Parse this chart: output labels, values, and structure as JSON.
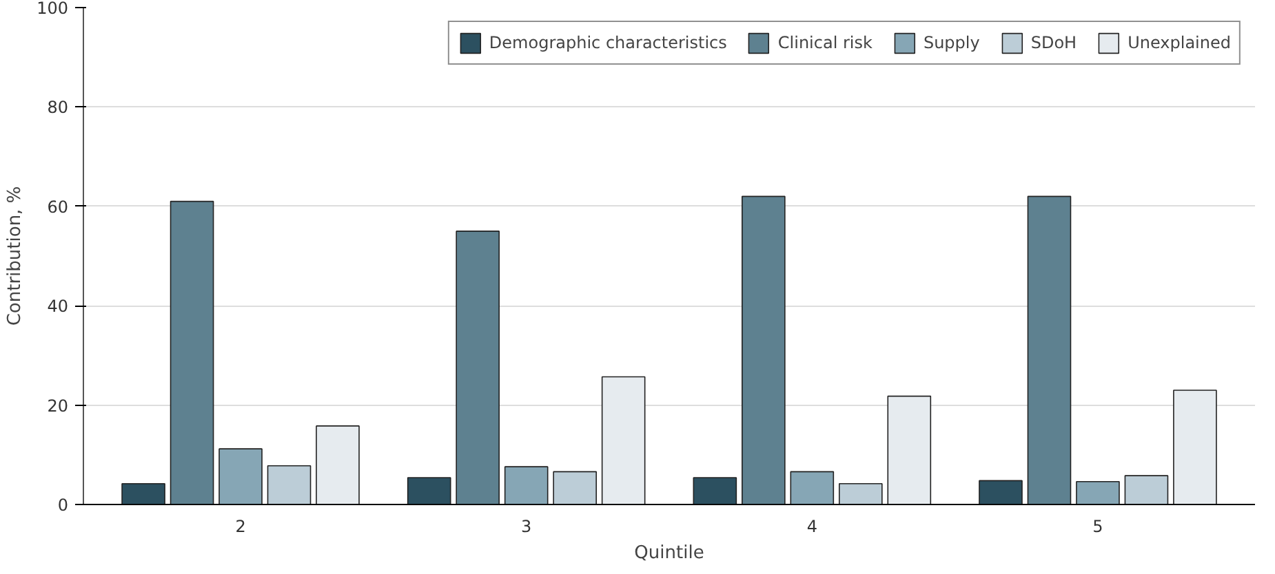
{
  "chart_data": {
    "type": "bar",
    "xlabel": "Quintile",
    "ylabel": "Contribution, %",
    "categories": [
      "2",
      "3",
      "4",
      "5"
    ],
    "series": [
      {
        "name": "Demographic characteristics",
        "color": "#2c5060",
        "values": [
          4.2,
          5.4,
          5.4,
          4.8
        ]
      },
      {
        "name": "Clinical risk",
        "color": "#5e8190",
        "values": [
          61,
          55,
          62,
          62
        ]
      },
      {
        "name": "Supply",
        "color": "#86a6b5",
        "values": [
          11.2,
          7.6,
          6.6,
          4.6
        ]
      },
      {
        "name": "SDoH",
        "color": "#bccdd7",
        "values": [
          7.8,
          6.6,
          4.2,
          5.8
        ]
      },
      {
        "name": "Unexplained",
        "color": "#e6ebef",
        "values": [
          15.8,
          25.7,
          21.8,
          23
        ]
      }
    ],
    "ylim": [
      0,
      100
    ],
    "yticks": [
      0,
      20,
      40,
      60,
      80,
      100
    ],
    "grid": "y",
    "legend": "top right"
  }
}
